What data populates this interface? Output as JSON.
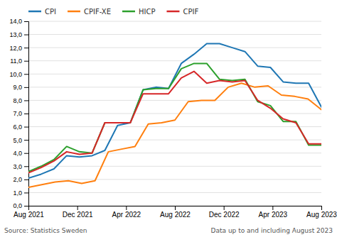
{
  "chart_data": {
    "type": "line",
    "xlim": [
      0,
      24
    ],
    "xticks": [
      {
        "value": 0,
        "label": "Aug 2021"
      },
      {
        "value": 4,
        "label": "Dec 2021"
      },
      {
        "value": 8,
        "label": "Apr 2022"
      },
      {
        "value": 12,
        "label": "Aug 2022"
      },
      {
        "value": 16,
        "label": "Dec 2022"
      },
      {
        "value": 20,
        "label": "Apr 2023"
      },
      {
        "value": 24,
        "label": "Aug 2023"
      }
    ],
    "ylim": [
      0,
      14
    ],
    "yticks": [
      {
        "value": 0,
        "label": "0,0"
      },
      {
        "value": 1,
        "label": "1,0"
      },
      {
        "value": 2,
        "label": "2,0"
      },
      {
        "value": 3,
        "label": "3,0"
      },
      {
        "value": 4,
        "label": "4,0"
      },
      {
        "value": 5,
        "label": "5,0"
      },
      {
        "value": 6,
        "label": "6,0"
      },
      {
        "value": 7,
        "label": "7,0"
      },
      {
        "value": 8,
        "label": "8,0"
      },
      {
        "value": 9,
        "label": "9,0"
      },
      {
        "value": 10,
        "label": "10,0"
      },
      {
        "value": 11,
        "label": "11,0"
      },
      {
        "value": 12,
        "label": "12,0"
      },
      {
        "value": 13,
        "label": "13,0"
      },
      {
        "value": 14,
        "label": "14,0"
      }
    ],
    "grid": true,
    "legend": "top-left",
    "annotations": [
      "Source: Statistics Sweden",
      "Data up to and including August 2023"
    ],
    "series": [
      {
        "name": "CPI",
        "x": [
          0,
          1.0435,
          2.087,
          3.1304,
          4.1739,
          5.2174,
          6.2609,
          7.3043,
          8.3478,
          9.3913,
          10.4348,
          11.4783,
          12.5217,
          13.5652,
          14.6087,
          15.6522,
          16.6957,
          17.7391,
          18.7826,
          19.8261,
          20.8696,
          21.913,
          22.9565,
          24
        ],
        "values": [
          2.1,
          2.4,
          2.8,
          3.8,
          3.7,
          3.8,
          4.2,
          6.1,
          6.3,
          8.8,
          9.0,
          8.9,
          10.8,
          11.5,
          12.3,
          12.3,
          12.0,
          11.7,
          10.6,
          10.5,
          9.4,
          9.3,
          9.3,
          7.5
        ]
      },
      {
        "name": "CPIF-XE",
        "x": [
          0,
          1.0909,
          2.1818,
          3.2727,
          4.3636,
          5.4545,
          6.5455,
          7.6364,
          8.7273,
          9.8182,
          10.9091,
          12,
          13.0909,
          14.1818,
          15.2727,
          16.3636,
          17.4545,
          18.5455,
          19.6364,
          20.7273,
          21.8182,
          22.9091,
          24
        ],
        "values": [
          1.4,
          1.6,
          1.8,
          1.9,
          1.7,
          1.9,
          4.1,
          4.3,
          4.5,
          6.2,
          6.3,
          6.5,
          7.9,
          8.0,
          8.0,
          9.0,
          9.3,
          9.0,
          9.1,
          8.4,
          8.3,
          8.1,
          7.3
        ]
      },
      {
        "name": "HICP",
        "x": [
          0,
          1.0435,
          2.087,
          3.1304,
          4.1739,
          5.2174,
          6.2609,
          7.3043,
          8.3478,
          9.3913,
          10.4348,
          11.4783,
          12.5217,
          13.5652,
          14.6087,
          15.6522,
          16.6957,
          17.7391,
          18.7826,
          19.8261,
          20.8696,
          21.913,
          22.9565,
          24
        ],
        "values": [
          2.6,
          3.0,
          3.5,
          4.5,
          4.1,
          4.0,
          6.3,
          6.3,
          6.3,
          8.8,
          8.9,
          8.9,
          10.4,
          10.8,
          10.8,
          9.6,
          9.5,
          9.6,
          7.9,
          7.6,
          6.4,
          6.4,
          4.6,
          4.6
        ]
      },
      {
        "name": "CPIF",
        "x": [
          0,
          1.0435,
          2.087,
          3.1304,
          4.1739,
          5.2174,
          6.2609,
          7.3043,
          8.3478,
          9.3913,
          10.4348,
          11.4783,
          12.5217,
          13.5652,
          14.6087,
          15.6522,
          16.6957,
          17.7391,
          18.7826,
          19.8261,
          20.8696,
          21.913,
          22.9565,
          24
        ],
        "values": [
          2.5,
          2.9,
          3.4,
          4.1,
          3.9,
          4.0,
          6.3,
          6.3,
          6.3,
          8.5,
          8.5,
          8.5,
          9.7,
          10.2,
          9.3,
          9.5,
          9.4,
          9.5,
          8.0,
          7.4,
          6.6,
          6.3,
          4.7,
          4.7
        ]
      }
    ]
  }
}
